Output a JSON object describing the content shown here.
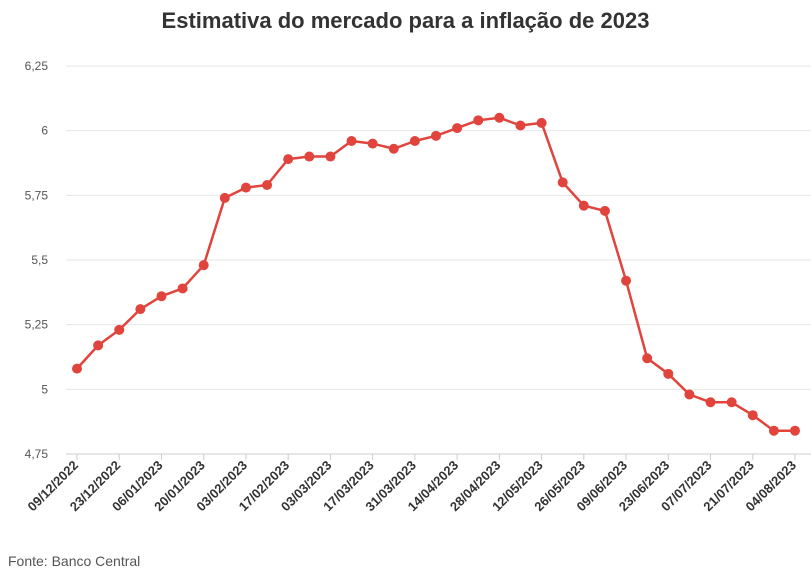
{
  "chart_data": {
    "type": "line",
    "title": "Estimativa do mercado para a inflação de 2023",
    "xlabel": "",
    "ylabel": "",
    "ylim": [
      4.75,
      6.25
    ],
    "yticks": [
      "4,75",
      "5",
      "5,25",
      "5,5",
      "5,75",
      "6",
      "6,25"
    ],
    "ytick_values": [
      4.75,
      5,
      5.25,
      5.5,
      5.75,
      6,
      6.25
    ],
    "x_tick_labels": [
      "09/12/2022",
      "23/12/2022",
      "06/01/2023",
      "20/01/2023",
      "03/02/2023",
      "17/02/2023",
      "03/03/2023",
      "17/03/2023",
      "31/03/2023",
      "14/04/2023",
      "28/04/2023",
      "12/05/2023",
      "26/05/2023",
      "09/06/2023",
      "23/06/2023",
      "07/07/2023",
      "21/07/2023",
      "04/08/2023"
    ],
    "grid": true,
    "legend": "none",
    "color": "#e0443c",
    "values": [
      5.08,
      5.17,
      5.23,
      5.31,
      5.36,
      5.39,
      5.48,
      5.74,
      5.78,
      5.79,
      5.89,
      5.9,
      5.9,
      5.96,
      5.95,
      5.93,
      5.96,
      5.98,
      6.01,
      6.04,
      6.05,
      6.02,
      6.03,
      5.8,
      5.71,
      5.69,
      5.42,
      5.12,
      5.06,
      4.98,
      4.95,
      4.95,
      4.9,
      4.84,
      4.84
    ]
  },
  "source": "Fonte: Banco Central"
}
